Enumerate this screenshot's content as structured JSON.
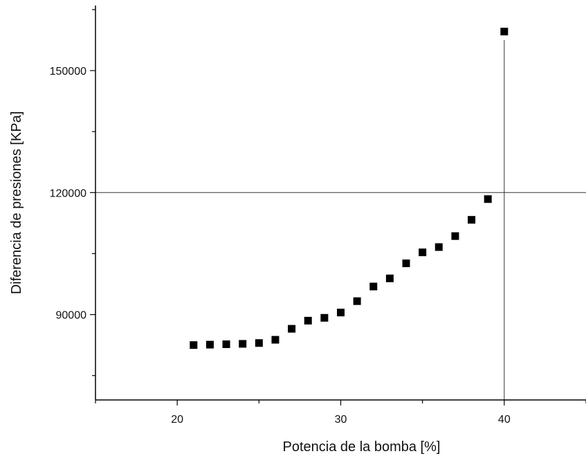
{
  "chart_data": {
    "type": "scatter",
    "xlabel": "Potencia de la bomba [%]",
    "ylabel": "Diferencia de presiones  [KPa]",
    "xlim": [
      15,
      45
    ],
    "ylim": [
      69000,
      166000
    ],
    "xticks": [
      20,
      30,
      40
    ],
    "xtick_labels": [
      "20",
      "30",
      "40"
    ],
    "yticks": [
      90000,
      120000,
      150000
    ],
    "ytick_labels": [
      "90000",
      "120000",
      "150000"
    ],
    "grid": false,
    "reference_lines": {
      "x": 40,
      "y": 120000
    },
    "series": [
      {
        "marker": "square",
        "color": "#000000",
        "x": [
          21,
          22,
          23,
          24,
          25,
          26,
          27,
          28,
          29,
          30,
          31,
          32,
          33,
          34,
          35,
          36,
          37,
          38,
          39,
          40
        ],
        "y": [
          82500,
          82600,
          82700,
          82800,
          83000,
          83800,
          86500,
          88500,
          89200,
          90500,
          93300,
          96900,
          98900,
          102600,
          105300,
          106600,
          109300,
          113300,
          118400,
          159600
        ]
      }
    ]
  }
}
